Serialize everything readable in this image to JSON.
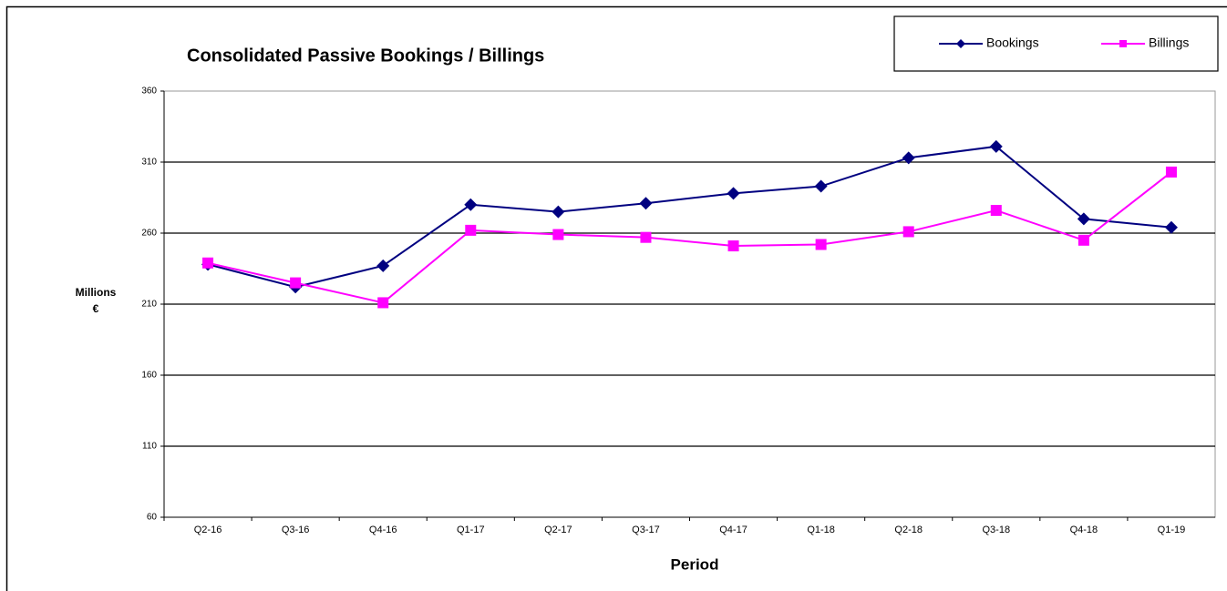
{
  "chart_data": {
    "type": "line",
    "title": "Consolidated Passive Bookings / Billings",
    "xlabel": "Period",
    "ylabel": [
      "Millions",
      "€"
    ],
    "categories": [
      "Q2-16",
      "Q3-16",
      "Q4-16",
      "Q1-17",
      "Q2-17",
      "Q3-17",
      "Q4-17",
      "Q1-18",
      "Q2-18",
      "Q3-18",
      "Q4-18",
      "Q1-19"
    ],
    "series": [
      {
        "name": "Bookings",
        "color": "#000080",
        "marker": "diamond",
        "values": [
          238,
          222,
          237,
          280,
          275,
          281,
          288,
          293,
          313,
          321,
          270,
          264
        ]
      },
      {
        "name": "Billings",
        "color": "#ff00ff",
        "marker": "square",
        "values": [
          239,
          225,
          211,
          262,
          259,
          257,
          251,
          252,
          261,
          276,
          255,
          303
        ]
      }
    ],
    "ylim": [
      60,
      360
    ],
    "yticks": [
      60,
      110,
      160,
      210,
      260,
      310,
      360
    ],
    "grid": true,
    "legend": "top-right"
  }
}
